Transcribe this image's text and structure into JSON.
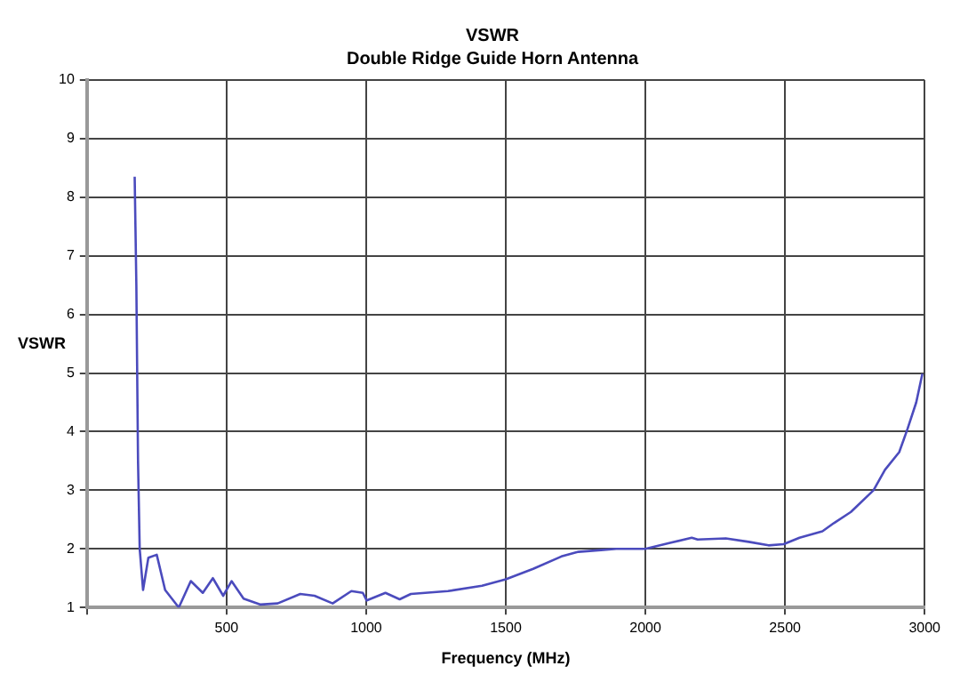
{
  "chart_data": {
    "type": "line",
    "title": "VSWR",
    "subtitle": "Double Ridge Guide Horn Antenna",
    "xlabel": "Frequency (MHz)",
    "ylabel": "VSWR",
    "series": [
      {
        "color": "#4b4bbd",
        "x": [
          171,
          177,
          183,
          189,
          201,
          220,
          250,
          280,
          329,
          372,
          415,
          451,
          488,
          518,
          561,
          622,
          683,
          764,
          815,
          880,
          947,
          988,
          1002,
          1069,
          1120,
          1160,
          1293,
          1415,
          1500,
          1598,
          1699,
          1760,
          1841,
          1896,
          2000,
          2085,
          2166,
          2187,
          2288,
          2370,
          2441,
          2495,
          2552,
          2634,
          2675,
          2736,
          2817,
          2858,
          2909,
          2939,
          2970,
          2992
        ],
        "values": [
          8.35,
          6.5,
          3.5,
          2.0,
          1.3,
          1.85,
          1.9,
          1.3,
          1.0,
          1.45,
          1.25,
          1.5,
          1.2,
          1.45,
          1.15,
          1.05,
          1.07,
          1.23,
          1.2,
          1.07,
          1.28,
          1.25,
          1.12,
          1.25,
          1.14,
          1.23,
          1.28,
          1.37,
          1.48,
          1.66,
          1.87,
          1.95,
          1.98,
          2.0,
          2.0,
          2.1,
          2.19,
          2.16,
          2.18,
          2.12,
          2.06,
          2.08,
          2.19,
          2.3,
          2.44,
          2.63,
          3.0,
          3.35,
          3.65,
          4.05,
          4.5,
          4.99
        ]
      }
    ],
    "xlim": [
      0,
      3000
    ],
    "xticks": [
      {
        "value": 0,
        "label": null
      },
      500,
      1000,
      1500,
      2000,
      2500,
      3000
    ],
    "ylim": [
      1,
      10
    ],
    "yticks": [
      1,
      2,
      3,
      4,
      5,
      6,
      7,
      8,
      9,
      10
    ],
    "grid": true,
    "legend": false,
    "marker": "none",
    "line_style": "solid"
  }
}
